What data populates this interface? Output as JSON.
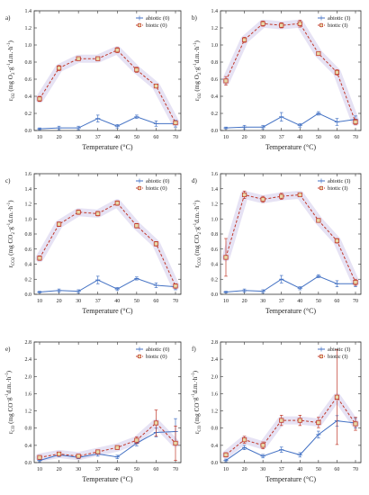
{
  "figure": {
    "xlabel": "Temperature (°C)",
    "colors": {
      "abiotic": "#4472c4",
      "biotic": "#c0392b",
      "biotic_marker_fill": "#e8d9a8",
      "glow": "#dcd6f0"
    }
  },
  "chart_data": [
    {
      "panel_label": "a)",
      "type": "line",
      "categories": [
        "10",
        "20",
        "30",
        "37",
        "40",
        "50",
        "60",
        "70"
      ],
      "ylabel": "r_O2 (mg O2·g-1d.m.·h-1)",
      "ylabel_parts": [
        "r",
        "O2",
        " (mg O",
        "2",
        "·g",
        "-1",
        "d.m.·h",
        "-1",
        ")"
      ],
      "ylim": [
        0,
        1.4
      ],
      "yticks": [
        "0.0",
        "0.2",
        "0.4",
        "0.6",
        "0.8",
        "1.0",
        "1.2",
        "1.4"
      ],
      "legend": [
        "abiotic (0)",
        "biotic (0)"
      ],
      "series": [
        {
          "name": "abiotic (0)",
          "values": [
            0.02,
            0.03,
            0.03,
            0.14,
            0.05,
            0.16,
            0.08,
            0.08
          ],
          "errors": [
            0.01,
            0.02,
            0.02,
            0.04,
            0.02,
            0.02,
            0.03,
            0.04
          ]
        },
        {
          "name": "biotic (0)",
          "values": [
            0.37,
            0.73,
            0.84,
            0.84,
            0.94,
            0.71,
            0.52,
            0.09
          ],
          "errors": [
            0.03,
            0.03,
            0.02,
            0.02,
            0.03,
            0.03,
            0.02,
            0.02
          ]
        }
      ]
    },
    {
      "panel_label": "b)",
      "type": "line",
      "categories": [
        "10",
        "20",
        "30",
        "37",
        "40",
        "50",
        "60",
        "70"
      ],
      "ylabel": "r_O2 (mg O2·g-1d.m.·h-1)",
      "ylabel_parts": [
        "r",
        "O2",
        " (mg O",
        "2",
        "·g",
        "-1",
        "d.m.·h",
        "-1",
        ")"
      ],
      "ylim": [
        0,
        1.4
      ],
      "yticks": [
        "0.0",
        "0.2",
        "0.4",
        "0.6",
        "0.8",
        "1.0",
        "1.2",
        "1.4"
      ],
      "legend": [
        "abiotic (I)",
        "biotic (I)"
      ],
      "series": [
        {
          "name": "abiotic (I)",
          "values": [
            0.03,
            0.04,
            0.04,
            0.16,
            0.06,
            0.2,
            0.1,
            0.13
          ],
          "errors": [
            0.01,
            0.02,
            0.02,
            0.05,
            0.02,
            0.02,
            0.04,
            0.04
          ]
        },
        {
          "name": "biotic (I)",
          "values": [
            0.58,
            1.06,
            1.25,
            1.23,
            1.25,
            0.9,
            0.68,
            0.1
          ],
          "errors": [
            0.05,
            0.03,
            0.03,
            0.03,
            0.04,
            0.02,
            0.03,
            0.03
          ]
        }
      ]
    },
    {
      "panel_label": "c)",
      "type": "line",
      "categories": [
        "10",
        "20",
        "30",
        "37",
        "40",
        "50",
        "60",
        "70"
      ],
      "ylabel": "r_CO2 (mg CO2·g-1d.m.·h-1)",
      "ylabel_parts": [
        "r",
        "CO2",
        " (mg CO",
        "2",
        "·g",
        "-1",
        "d.m.·h",
        "-1",
        ")"
      ],
      "ylim": [
        0,
        1.6
      ],
      "yticks": [
        "0.0",
        "0.2",
        "0.4",
        "0.6",
        "0.8",
        "1.0",
        "1.2",
        "1.4",
        "1.6"
      ],
      "legend": [
        "abiotic (0)",
        "biotic (0)"
      ],
      "series": [
        {
          "name": "abiotic (0)",
          "values": [
            0.03,
            0.05,
            0.04,
            0.19,
            0.07,
            0.21,
            0.12,
            0.1
          ],
          "errors": [
            0.01,
            0.02,
            0.02,
            0.05,
            0.02,
            0.02,
            0.03,
            0.04
          ]
        },
        {
          "name": "biotic (0)",
          "values": [
            0.48,
            0.93,
            1.09,
            1.07,
            1.21,
            0.91,
            0.67,
            0.11
          ],
          "errors": [
            0.03,
            0.03,
            0.03,
            0.03,
            0.03,
            0.03,
            0.03,
            0.03
          ]
        }
      ]
    },
    {
      "panel_label": "d)",
      "type": "line",
      "categories": [
        "10",
        "20",
        "30",
        "37",
        "40",
        "50",
        "60",
        "70"
      ],
      "ylabel": "r_CO2 (mg CO2·g-1d.m.·h-1)",
      "ylabel_parts": [
        "r",
        "CO2",
        " (mg CO",
        "2",
        "·g",
        "-1",
        "d.m.·h",
        "-1",
        ")"
      ],
      "ylim": [
        0,
        1.6
      ],
      "yticks": [
        "0.0",
        "0.2",
        "0.4",
        "0.6",
        "0.8",
        "1.0",
        "1.2",
        "1.4",
        "1.6"
      ],
      "legend": [
        "abiotic (I)",
        "biotic (I)"
      ],
      "series": [
        {
          "name": "abiotic (I)",
          "values": [
            0.03,
            0.05,
            0.04,
            0.2,
            0.08,
            0.24,
            0.14,
            0.14
          ],
          "errors": [
            0.01,
            0.02,
            0.02,
            0.05,
            0.02,
            0.02,
            0.04,
            0.04
          ]
        },
        {
          "name": "biotic (I)",
          "values": [
            0.49,
            1.32,
            1.26,
            1.3,
            1.32,
            0.98,
            0.71,
            0.16
          ],
          "errors": [
            0.25,
            0.05,
            0.04,
            0.04,
            0.02,
            0.02,
            0.03,
            0.04
          ]
        }
      ]
    },
    {
      "panel_label": "e)",
      "type": "line",
      "categories": [
        "10",
        "20",
        "30",
        "37",
        "40",
        "50",
        "60",
        "70"
      ],
      "ylabel": "r_CO (mg CO·g-1d.m.·h-1)",
      "ylabel_parts": [
        "r",
        "CO",
        " (mg CO",
        "",
        "·g",
        "-1",
        "d.m.·h",
        "-1",
        ")"
      ],
      "ylim": [
        0,
        2.8
      ],
      "yticks": [
        "0.0",
        "0.4",
        "0.8",
        "1.2",
        "1.6",
        "2.0",
        "2.4",
        "2.8"
      ],
      "legend": [
        "abiotic (0)",
        "biotic (0)"
      ],
      "series": [
        {
          "name": "abiotic (0)",
          "values": [
            0.05,
            0.18,
            0.12,
            0.2,
            0.13,
            0.45,
            0.7,
            0.72
          ],
          "errors": [
            0.03,
            0.04,
            0.03,
            0.05,
            0.04,
            0.06,
            0.1,
            0.3
          ]
        },
        {
          "name": "biotic (0)",
          "values": [
            0.12,
            0.2,
            0.15,
            0.25,
            0.35,
            0.52,
            0.92,
            0.45
          ],
          "errors": [
            0.03,
            0.03,
            0.03,
            0.04,
            0.04,
            0.08,
            0.3,
            0.4
          ]
        }
      ]
    },
    {
      "panel_label": "f)",
      "type": "line",
      "categories": [
        "10",
        "20",
        "30",
        "37",
        "40",
        "50",
        "60",
        "70"
      ],
      "ylabel": "r_CO (mg CO·g-1d.m.·h-1)",
      "ylabel_parts": [
        "r",
        "CO",
        " (mg CO",
        "",
        "·g",
        "-1",
        "d.m.·h",
        "-1",
        ")"
      ],
      "ylim": [
        0,
        2.8
      ],
      "yticks": [
        "0.0",
        "0.4",
        "0.8",
        "1.2",
        "1.6",
        "2.0",
        "2.4",
        "2.8"
      ],
      "legend": [
        "abiotic (I)",
        "biotic (I)"
      ],
      "series": [
        {
          "name": "abiotic (I)",
          "values": [
            0.05,
            0.35,
            0.15,
            0.3,
            0.18,
            0.65,
            0.97,
            0.92
          ],
          "errors": [
            0.03,
            0.05,
            0.04,
            0.06,
            0.05,
            0.08,
            0.12,
            0.12
          ]
        },
        {
          "name": "biotic (I)",
          "values": [
            0.18,
            0.53,
            0.4,
            0.98,
            0.98,
            0.93,
            1.52,
            0.9
          ],
          "errors": [
            0.05,
            0.08,
            0.08,
            0.12,
            0.12,
            0.12,
            1.1,
            0.15
          ]
        }
      ]
    }
  ]
}
